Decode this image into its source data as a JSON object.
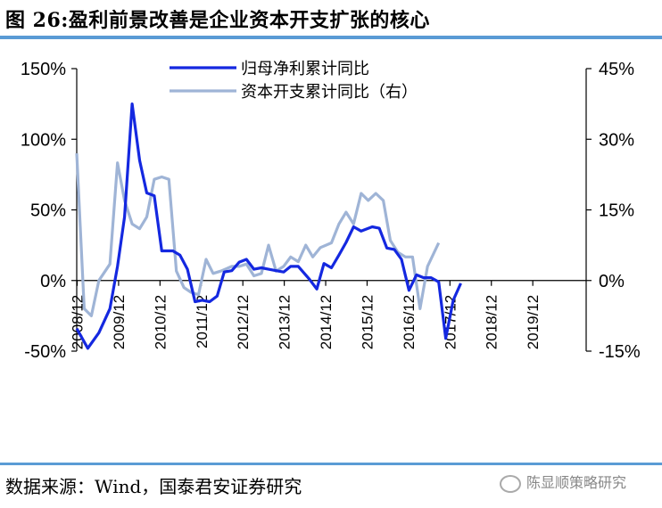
{
  "figure": {
    "title": "图 26:盈利前景改善是企业资本开支扩张的核心",
    "source": "数据来源：Wind，国泰君安证券研究",
    "watermark": "陈显顺策略研究"
  },
  "colors": {
    "series1": "#1428e0",
    "series2": "#9fb4d6",
    "rule": "#5a9bd5"
  },
  "chart_data": {
    "type": "line",
    "title": "",
    "xlabel": "",
    "ylabel": "",
    "x_tick_labels": [
      "2008/12",
      "2009/12",
      "2010/12",
      "2011/12",
      "2012/12",
      "2013/12",
      "2014/12",
      "2015/12",
      "2016/12",
      "2017/12",
      "2018/12",
      "2019/12"
    ],
    "x_range": [
      2008.75,
      2020.25
    ],
    "y_left": {
      "range": [
        -50,
        150
      ],
      "ticks": [
        -50,
        0,
        50,
        100,
        150
      ],
      "tick_labels": [
        "-50%",
        "0%",
        "50%",
        "100%",
        "150%"
      ]
    },
    "y_right": {
      "range": [
        -15,
        45
      ],
      "ticks": [
        -15,
        0,
        15,
        30,
        45
      ],
      "tick_labels": [
        "-15%",
        "0%",
        "15%",
        "30%",
        "45%"
      ]
    },
    "legend_position": "top-center",
    "grid": false,
    "series": [
      {
        "name": "归母净利累计同比",
        "axis": "left",
        "points": [
          [
            2008.75,
            -34
          ],
          [
            2009.0,
            -48
          ],
          [
            2009.25,
            -37
          ],
          [
            2009.5,
            -20
          ],
          [
            2009.67,
            10
          ],
          [
            2009.83,
            45
          ],
          [
            2010.0,
            125
          ],
          [
            2010.17,
            85
          ],
          [
            2010.33,
            62
          ],
          [
            2010.5,
            60
          ],
          [
            2010.67,
            21
          ],
          [
            2010.92,
            21
          ],
          [
            2011.08,
            18
          ],
          [
            2011.25,
            8
          ],
          [
            2011.42,
            -15
          ],
          [
            2011.58,
            -14
          ],
          [
            2011.75,
            -15
          ],
          [
            2011.92,
            -11
          ],
          [
            2012.08,
            6
          ],
          [
            2012.25,
            7
          ],
          [
            2012.42,
            13
          ],
          [
            2012.58,
            15
          ],
          [
            2012.75,
            8
          ],
          [
            2012.92,
            9
          ],
          [
            2013.08,
            8
          ],
          [
            2013.25,
            7
          ],
          [
            2013.42,
            6
          ],
          [
            2013.58,
            10
          ],
          [
            2013.75,
            10
          ],
          [
            2014.0,
            1
          ],
          [
            2014.17,
            -6
          ],
          [
            2014.33,
            12
          ],
          [
            2014.5,
            9
          ],
          [
            2014.67,
            18
          ],
          [
            2014.83,
            27
          ],
          [
            2015.0,
            38
          ],
          [
            2015.17,
            35
          ],
          [
            2015.42,
            38
          ],
          [
            2015.58,
            37
          ],
          [
            2015.75,
            23
          ],
          [
            2015.92,
            22
          ],
          [
            2016.08,
            15
          ],
          [
            2016.25,
            -7
          ],
          [
            2016.42,
            4
          ],
          [
            2016.58,
            2
          ],
          [
            2016.75,
            2
          ],
          [
            2016.92,
            -1
          ],
          [
            2017.08,
            -41
          ],
          [
            2017.25,
            -14
          ],
          [
            2017.42,
            -2
          ]
        ]
      },
      {
        "name": "资本开支累计同比（右）",
        "axis": "right",
        "points": [
          [
            2008.75,
            27
          ],
          [
            2008.92,
            -6
          ],
          [
            2009.08,
            -7.5
          ],
          [
            2009.25,
            0
          ],
          [
            2009.5,
            3.5
          ],
          [
            2009.67,
            25
          ],
          [
            2009.83,
            17
          ],
          [
            2010.0,
            12
          ],
          [
            2010.17,
            11
          ],
          [
            2010.33,
            13.5
          ],
          [
            2010.5,
            21.5
          ],
          [
            2010.67,
            22
          ],
          [
            2010.83,
            21.5
          ],
          [
            2011.0,
            2
          ],
          [
            2011.17,
            -1.5
          ],
          [
            2011.33,
            -2.5
          ],
          [
            2011.5,
            -3
          ],
          [
            2011.67,
            4.5
          ],
          [
            2011.83,
            1.5
          ],
          [
            2012.0,
            2
          ],
          [
            2012.25,
            3
          ],
          [
            2012.42,
            3
          ],
          [
            2012.58,
            3.5
          ],
          [
            2012.75,
            1
          ],
          [
            2012.92,
            1.5
          ],
          [
            2013.08,
            7.5
          ],
          [
            2013.25,
            2
          ],
          [
            2013.42,
            3
          ],
          [
            2013.58,
            5
          ],
          [
            2013.75,
            4
          ],
          [
            2013.92,
            7.5
          ],
          [
            2014.08,
            5
          ],
          [
            2014.25,
            7
          ],
          [
            2014.5,
            8
          ],
          [
            2014.67,
            12
          ],
          [
            2014.83,
            14.5
          ],
          [
            2015.0,
            12
          ],
          [
            2015.17,
            18.5
          ],
          [
            2015.33,
            17
          ],
          [
            2015.5,
            18.5
          ],
          [
            2015.67,
            17
          ],
          [
            2015.83,
            8.5
          ],
          [
            2016.0,
            6
          ],
          [
            2016.17,
            5
          ],
          [
            2016.33,
            5
          ],
          [
            2016.5,
            -6
          ],
          [
            2016.67,
            3
          ],
          [
            2016.92,
            8
          ]
        ]
      }
    ]
  }
}
